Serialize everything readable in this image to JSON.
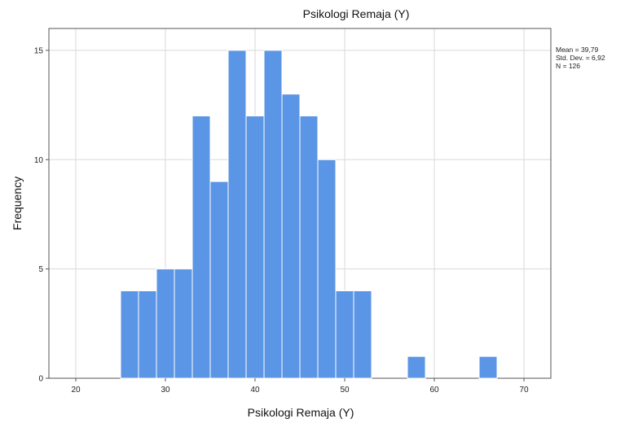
{
  "chart_data": {
    "type": "bar",
    "title": "Psikologi Remaja (Y)",
    "xlabel": "Psikologi Remaja (Y)",
    "ylabel": "Frequency",
    "bin_width": 2,
    "bins": [
      {
        "x0": 25,
        "x1": 27,
        "count": 4
      },
      {
        "x0": 27,
        "x1": 29,
        "count": 4
      },
      {
        "x0": 29,
        "x1": 31,
        "count": 5
      },
      {
        "x0": 31,
        "x1": 33,
        "count": 5
      },
      {
        "x0": 33,
        "x1": 35,
        "count": 12
      },
      {
        "x0": 35,
        "x1": 37,
        "count": 9
      },
      {
        "x0": 37,
        "x1": 39,
        "count": 15
      },
      {
        "x0": 39,
        "x1": 41,
        "count": 12
      },
      {
        "x0": 41,
        "x1": 43,
        "count": 15
      },
      {
        "x0": 43,
        "x1": 45,
        "count": 13
      },
      {
        "x0": 45,
        "x1": 47,
        "count": 12
      },
      {
        "x0": 47,
        "x1": 49,
        "count": 10
      },
      {
        "x0": 49,
        "x1": 51,
        "count": 4
      },
      {
        "x0": 51,
        "x1": 53,
        "count": 4
      },
      {
        "x0": 57,
        "x1": 59,
        "count": 1
      },
      {
        "x0": 65,
        "x1": 67,
        "count": 1
      }
    ],
    "xlim": [
      17,
      73
    ],
    "ylim": [
      0,
      16
    ],
    "x_ticks": [
      20,
      30,
      40,
      50,
      60,
      70
    ],
    "y_ticks": [
      0,
      5,
      10,
      15
    ],
    "grid": true,
    "bar_color": "#5b95e5",
    "bar_edge_color": "#ffffff",
    "stats": {
      "mean": "Mean = 39,79",
      "std": "Std. Dev. = 6,92",
      "n": "N = 126"
    },
    "legend_position": "top-right"
  }
}
